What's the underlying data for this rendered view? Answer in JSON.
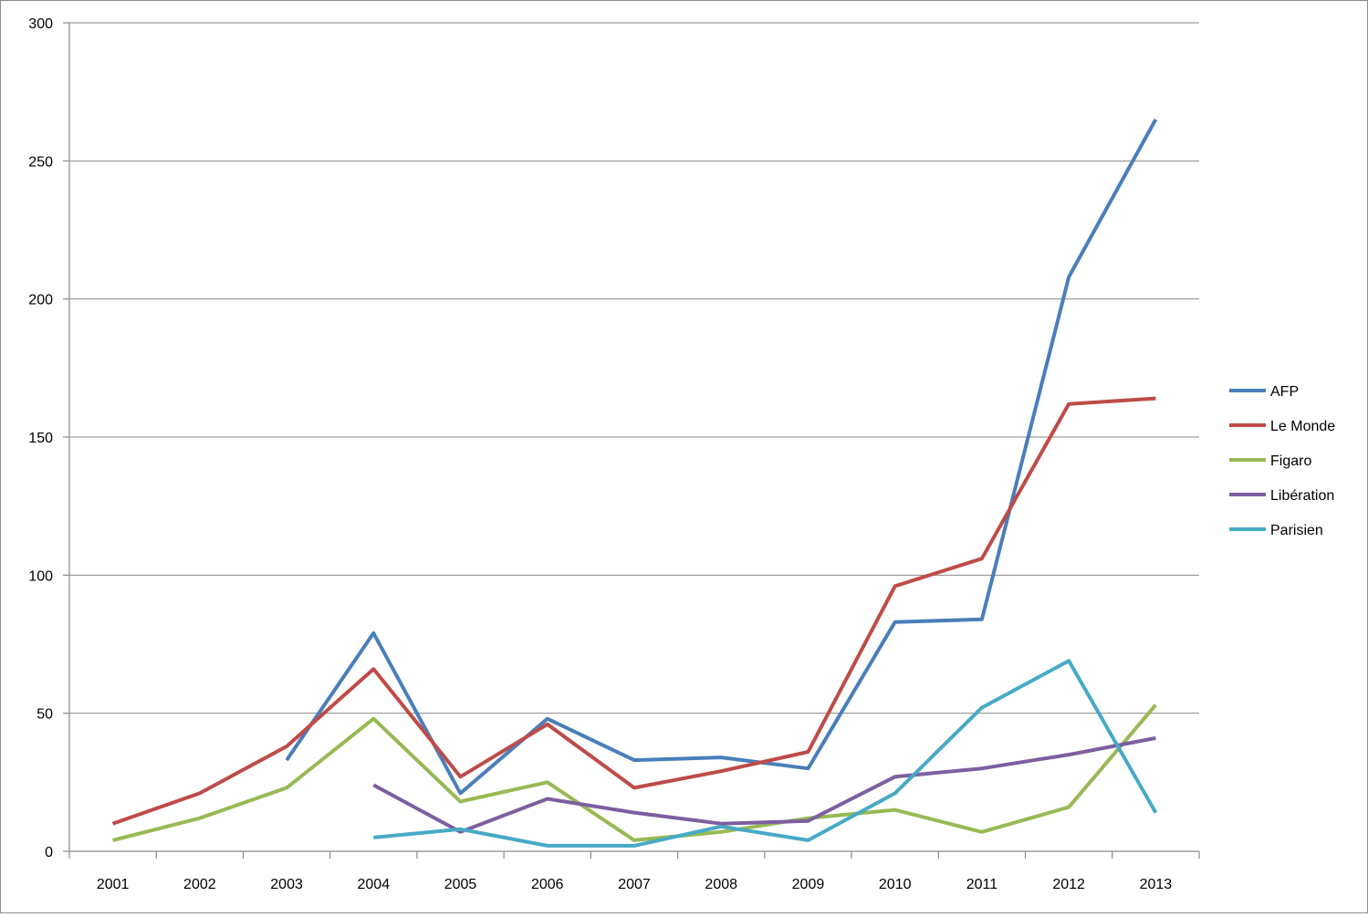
{
  "chart_data": {
    "type": "line",
    "title": "",
    "xlabel": "",
    "ylabel": "",
    "categories": [
      "2001",
      "2002",
      "2003",
      "2004",
      "2005",
      "2006",
      "2007",
      "2008",
      "2009",
      "2010",
      "2011",
      "2012",
      "2013"
    ],
    "ylim": [
      0,
      300
    ],
    "yticks": [
      "0",
      "50",
      "100",
      "150",
      "200",
      "250",
      "300"
    ],
    "grid": true,
    "legend_position": "right",
    "series": [
      {
        "name": "AFP",
        "color": "#4a7ebb",
        "values": [
          null,
          null,
          33,
          79,
          21,
          48,
          33,
          34,
          30,
          83,
          84,
          208,
          265
        ]
      },
      {
        "name": "Le Monde",
        "color": "#be4b48",
        "values": [
          10,
          21,
          38,
          66,
          27,
          46,
          23,
          29,
          36,
          96,
          106,
          162,
          164
        ]
      },
      {
        "name": "Figaro",
        "color": "#98b954",
        "values": [
          4,
          12,
          23,
          48,
          18,
          25,
          4,
          7,
          12,
          15,
          7,
          16,
          53
        ]
      },
      {
        "name": "Libération",
        "color": "#7d5fa0",
        "values": [
          null,
          null,
          null,
          24,
          7,
          19,
          14,
          10,
          11,
          27,
          30,
          35,
          41
        ]
      },
      {
        "name": "Parisien",
        "color": "#46aac5",
        "values": [
          null,
          null,
          null,
          5,
          8,
          2,
          2,
          9,
          4,
          21,
          52,
          69,
          14
        ]
      }
    ]
  }
}
